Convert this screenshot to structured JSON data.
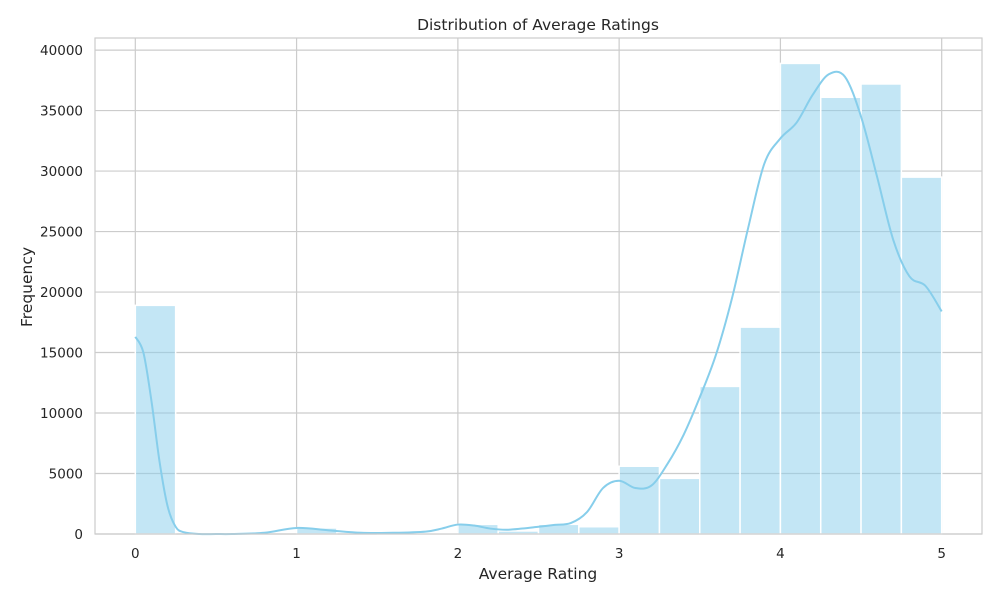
{
  "chart_data": {
    "type": "bar",
    "title": "Distribution of Average Ratings",
    "xlabel": "Average Rating",
    "ylabel": "Frequency",
    "xlim": [
      -0.25,
      5.25
    ],
    "ylim": [
      0,
      41000
    ],
    "x_ticks": [
      0,
      1,
      2,
      3,
      4,
      5
    ],
    "y_ticks": [
      0,
      5000,
      10000,
      15000,
      20000,
      25000,
      30000,
      35000,
      40000
    ],
    "grid": true,
    "bar_color": "#87CEEB",
    "kde_color": "#87CEEB",
    "bins": [
      {
        "x0": 0.0,
        "x1": 0.25,
        "value": 18900
      },
      {
        "x0": 0.25,
        "x1": 0.5,
        "value": 0
      },
      {
        "x0": 0.5,
        "x1": 0.75,
        "value": 0
      },
      {
        "x0": 0.75,
        "x1": 1.0,
        "value": 0
      },
      {
        "x0": 1.0,
        "x1": 1.25,
        "value": 500
      },
      {
        "x0": 1.25,
        "x1": 1.5,
        "value": 0
      },
      {
        "x0": 1.5,
        "x1": 1.75,
        "value": 100
      },
      {
        "x0": 1.75,
        "x1": 2.0,
        "value": 100
      },
      {
        "x0": 2.0,
        "x1": 2.25,
        "value": 800
      },
      {
        "x0": 2.25,
        "x1": 2.5,
        "value": 250
      },
      {
        "x0": 2.5,
        "x1": 2.75,
        "value": 800
      },
      {
        "x0": 2.75,
        "x1": 3.0,
        "value": 600
      },
      {
        "x0": 3.0,
        "x1": 3.25,
        "value": 5600
      },
      {
        "x0": 3.25,
        "x1": 3.5,
        "value": 4600
      },
      {
        "x0": 3.5,
        "x1": 3.75,
        "value": 12200
      },
      {
        "x0": 3.75,
        "x1": 4.0,
        "value": 17100
      },
      {
        "x0": 4.0,
        "x1": 4.25,
        "value": 38900
      },
      {
        "x0": 4.25,
        "x1": 4.5,
        "value": 36100
      },
      {
        "x0": 4.5,
        "x1": 4.75,
        "value": 37200
      },
      {
        "x0": 4.75,
        "x1": 5.0,
        "value": 29500
      }
    ],
    "kde": {
      "x": [
        0,
        0.05,
        0.1,
        0.15,
        0.2,
        0.25,
        0.3,
        0.4,
        0.5,
        0.6,
        0.8,
        1.0,
        1.2,
        1.4,
        1.6,
        1.8,
        1.9,
        2.0,
        2.1,
        2.2,
        2.3,
        2.4,
        2.5,
        2.6,
        2.7,
        2.8,
        2.9,
        3.0,
        3.1,
        3.2,
        3.3,
        3.4,
        3.5,
        3.6,
        3.7,
        3.8,
        3.9,
        4.0,
        4.1,
        4.2,
        4.3,
        4.4,
        4.5,
        4.6,
        4.7,
        4.8,
        4.9,
        5.0
      ],
      "y": [
        16300,
        15000,
        11000,
        6000,
        2300,
        600,
        150,
        0,
        0,
        0,
        100,
        500,
        300,
        100,
        100,
        200,
        450,
        780,
        700,
        450,
        350,
        450,
        600,
        750,
        900,
        1800,
        3800,
        4400,
        3800,
        4000,
        5800,
        8200,
        11300,
        14800,
        19500,
        25300,
        30600,
        32700,
        34000,
        36300,
        38000,
        37800,
        34500,
        29500,
        24300,
        21300,
        20500,
        18400
      ]
    }
  }
}
